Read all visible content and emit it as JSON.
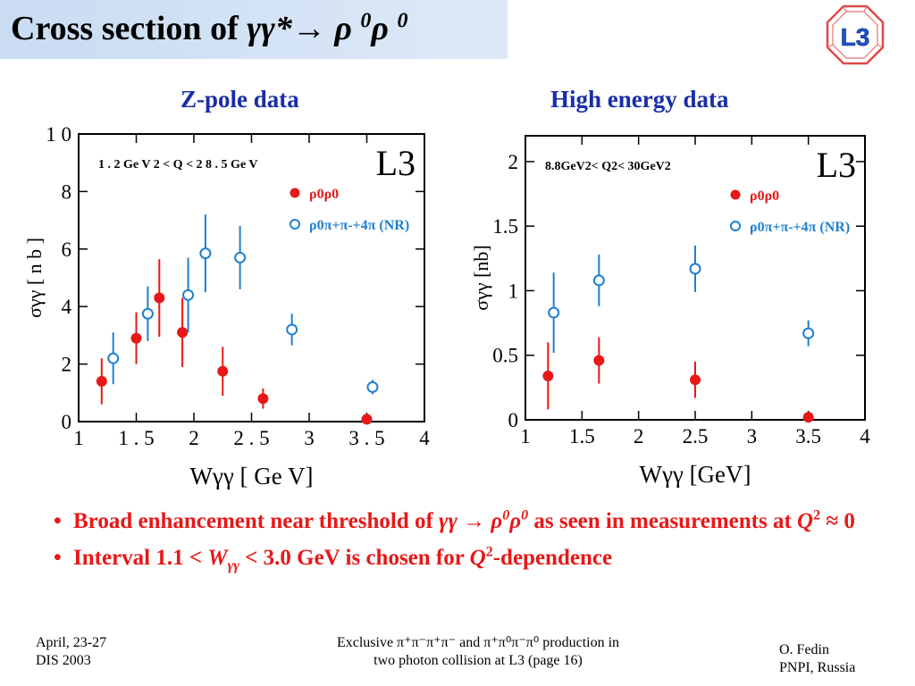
{
  "slide": {
    "title": "Cross section of γγ*→ ρ 0ρ 0",
    "title_parts": {
      "prefix": "Cross section of ",
      "proc": "γγ*→ ρ ",
      "sup1": "0",
      "rho2": "ρ ",
      "sup2": "0"
    },
    "logo_text": "L3",
    "panel_titles": {
      "left": "Z-pole data",
      "right": "High energy data"
    },
    "bullets": [
      {
        "text": "Broad enhancement near threshold of γγ → ρ0ρ0 as seen in measurements at Q2 ≈ 0",
        "p1": "Broad enhancement near threshold of ",
        "g": "γγ → ρ",
        "s1": "0",
        "r2": "ρ",
        "s2": "0",
        "p2": " as seen in measurements at ",
        "q": "Q",
        "qs": "2",
        "p3": " ≈ 0"
      },
      {
        "text": "Interval 1.1 < Wγγ < 3.0 GeV is chosen for Q2-dependence",
        "p1": "Interval 1.1 <  ",
        "w": "W",
        "wsub": "γγ",
        "p2": " < 3.0 GeV is chosen for ",
        "q": "Q",
        "qs": "2",
        "p3": "-dependence"
      }
    ],
    "footer": {
      "left_line1": "April, 23-27",
      "left_line2": "DIS 2003",
      "center_line1": "Exclusive π⁺π⁻π⁺π⁻ and π⁺π⁰π⁻π⁰ production in",
      "center_line2": "two photon collision at L3 (page 16)",
      "right_line1": "O. Fedin",
      "right_line2": "PNPI, Russia"
    },
    "colors": {
      "red": "#e81818",
      "blue": "#1f7fd0",
      "title_blue": "#1a2ea8",
      "bar": "#c9dcf2"
    }
  },
  "chart_data": [
    {
      "type": "scatter",
      "title": "Z-pole data",
      "xlabel": "Wγγ [ Ge V]",
      "ylabel": "σγγ [ n b ]",
      "xlim": [
        1,
        4
      ],
      "ylim": [
        0,
        10
      ],
      "xticks": [
        {
          "v": 1,
          "label": "1"
        },
        {
          "v": 1.5,
          "label": "1 . 5"
        },
        {
          "v": 2,
          "label": "2"
        },
        {
          "v": 2.5,
          "label": "2 . 5"
        },
        {
          "v": 3,
          "label": "3"
        },
        {
          "v": 3.5,
          "label": "3 . 5"
        },
        {
          "v": 4,
          "label": "4"
        }
      ],
      "yticks": [
        {
          "v": 0,
          "label": "0"
        },
        {
          "v": 2,
          "label": "2"
        },
        {
          "v": 4,
          "label": "4"
        },
        {
          "v": 6,
          "label": "6"
        },
        {
          "v": 8,
          "label": "8"
        },
        {
          "v": 10,
          "label": "1 0"
        }
      ],
      "cut_label": "1 . 2 Ge V  2 <  Q  < 2 8 . 5 Ge V",
      "experiment_label": "L3",
      "legend_position": "top-right",
      "series": [
        {
          "name": "ρ0ρ0",
          "color": "#e81818",
          "marker": "filled",
          "legend_label": "ρ0ρ0",
          "points": [
            [
              1.2,
              1.4,
              0.8
            ],
            [
              1.5,
              2.9,
              0.9
            ],
            [
              1.7,
              4.3,
              1.35
            ],
            [
              1.9,
              3.1,
              1.2
            ],
            [
              2.25,
              1.75,
              0.85
            ],
            [
              2.6,
              0.8,
              0.35
            ],
            [
              3.5,
              0.08,
              0.06
            ]
          ]
        },
        {
          "name": "ρ0π+π-+4π (NR)",
          "color": "#1f7fd0",
          "marker": "open",
          "legend_label": "ρ0π+π-+4π (NR)",
          "points": [
            [
              1.3,
              2.2,
              0.9
            ],
            [
              1.6,
              3.75,
              0.95
            ],
            [
              1.95,
              4.4,
              1.3
            ],
            [
              2.1,
              5.85,
              1.35
            ],
            [
              2.4,
              5.7,
              1.1
            ],
            [
              2.85,
              3.2,
              0.55
            ],
            [
              3.55,
              1.2,
              0.25
            ]
          ]
        }
      ]
    },
    {
      "type": "scatter",
      "title": "High energy data",
      "xlabel": "Wγγ [GeV]",
      "ylabel": "σγγ [nb]",
      "xlim": [
        1,
        4
      ],
      "ylim": [
        0,
        2.2
      ],
      "xticks": [
        {
          "v": 1,
          "label": "1"
        },
        {
          "v": 1.5,
          "label": "1.5"
        },
        {
          "v": 2,
          "label": "2"
        },
        {
          "v": 2.5,
          "label": "2.5"
        },
        {
          "v": 3,
          "label": "3"
        },
        {
          "v": 3.5,
          "label": "3.5"
        },
        {
          "v": 4,
          "label": "4"
        }
      ],
      "yticks": [
        {
          "v": 0,
          "label": "0"
        },
        {
          "v": 0.5,
          "label": "0.5"
        },
        {
          "v": 1,
          "label": "1"
        },
        {
          "v": 1.5,
          "label": "1.5"
        },
        {
          "v": 2,
          "label": "2"
        }
      ],
      "cut_label": "8.8GeV2< Q2< 30GeV2",
      "experiment_label": "L3",
      "legend_position": "top-right",
      "series": [
        {
          "name": "ρ0ρ0",
          "color": "#e81818",
          "marker": "filled",
          "legend_label": "ρ0ρ0",
          "points": [
            [
              1.2,
              0.34,
              0.26
            ],
            [
              1.65,
              0.46,
              0.18
            ],
            [
              2.5,
              0.31,
              0.14
            ],
            [
              3.5,
              0.02,
              0.02
            ]
          ]
        },
        {
          "name": "ρ0π+π-+4π (NR)",
          "color": "#1f7fd0",
          "marker": "open",
          "legend_label": "ρ0π+π-+4π (NR)",
          "points": [
            [
              1.25,
              0.83,
              0.31
            ],
            [
              1.65,
              1.08,
              0.2
            ],
            [
              2.5,
              1.17,
              0.18
            ],
            [
              3.5,
              0.67,
              0.1
            ]
          ]
        }
      ]
    }
  ]
}
